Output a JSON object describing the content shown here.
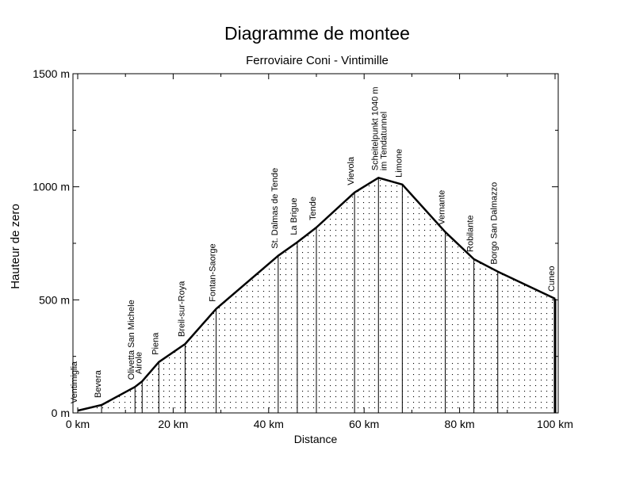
{
  "chart_data": {
    "type": "area",
    "title": "Diagramme de montee",
    "subtitle": "Ferroviaire  Coni - Vintimille",
    "xlabel": "Distance",
    "ylabel": "Hauteur de zero",
    "xlim": [
      0,
      100
    ],
    "ylim": [
      0,
      1500
    ],
    "x_ticks": [
      {
        "value": 0,
        "label": "0 km"
      },
      {
        "value": 20,
        "label": "20 km"
      },
      {
        "value": 40,
        "label": "40 km"
      },
      {
        "value": 60,
        "label": "60 km"
      },
      {
        "value": 80,
        "label": "80 km"
      },
      {
        "value": 100,
        "label": "100 km"
      }
    ],
    "y_ticks": [
      {
        "value": 0,
        "label": "0 m"
      },
      {
        "value": 500,
        "label": "500 m"
      },
      {
        "value": 1000,
        "label": "1000 m"
      },
      {
        "value": 1500,
        "label": "1500 m"
      }
    ],
    "grid": false,
    "fill": "dotted",
    "colors": {
      "line": "#000000",
      "fill_dots": "#000000",
      "background": "#ffffff"
    },
    "profile": [
      {
        "x": 0,
        "y": 10
      },
      {
        "x": 5,
        "y": 35
      },
      {
        "x": 12,
        "y": 115
      },
      {
        "x": 13.5,
        "y": 140
      },
      {
        "x": 17,
        "y": 225
      },
      {
        "x": 22.5,
        "y": 305
      },
      {
        "x": 29,
        "y": 460
      },
      {
        "x": 42,
        "y": 695
      },
      {
        "x": 46,
        "y": 755
      },
      {
        "x": 50,
        "y": 820
      },
      {
        "x": 58,
        "y": 975
      },
      {
        "x": 63,
        "y": 1040
      },
      {
        "x": 68,
        "y": 1010
      },
      {
        "x": 77,
        "y": 800
      },
      {
        "x": 83,
        "y": 680
      },
      {
        "x": 88,
        "y": 625
      },
      {
        "x": 100,
        "y": 505
      }
    ],
    "stations": [
      {
        "name": "Ventimiglia",
        "x": 0,
        "y": 10
      },
      {
        "name": "Bevera",
        "x": 5,
        "y": 35
      },
      {
        "name": "Olivetta San Michele",
        "x": 12,
        "y": 115
      },
      {
        "name": "Airole",
        "x": 13.5,
        "y": 140
      },
      {
        "name": "Piena",
        "x": 17,
        "y": 225
      },
      {
        "name": "Breil-sur-Roya",
        "x": 22.5,
        "y": 305
      },
      {
        "name": "Fontan-Saorge",
        "x": 29,
        "y": 460
      },
      {
        "name": "St. Dalmas de Tende",
        "x": 42,
        "y": 695
      },
      {
        "name": "La Brigue",
        "x": 46,
        "y": 755
      },
      {
        "name": "Tende",
        "x": 50,
        "y": 820
      },
      {
        "name": "Vievola",
        "x": 58,
        "y": 975
      },
      {
        "name": "Scheitelpunkt 1040 m",
        "name2": "im Tendatunnel",
        "x": 63,
        "y": 1040
      },
      {
        "name": "Limone",
        "x": 68,
        "y": 1010
      },
      {
        "name": "Vernante",
        "x": 77,
        "y": 800
      },
      {
        "name": "Robilante",
        "x": 83,
        "y": 680
      },
      {
        "name": "Borgo San Dalmazzo",
        "x": 88,
        "y": 625
      },
      {
        "name": "Cuneo",
        "x": 100,
        "y": 505
      }
    ]
  }
}
